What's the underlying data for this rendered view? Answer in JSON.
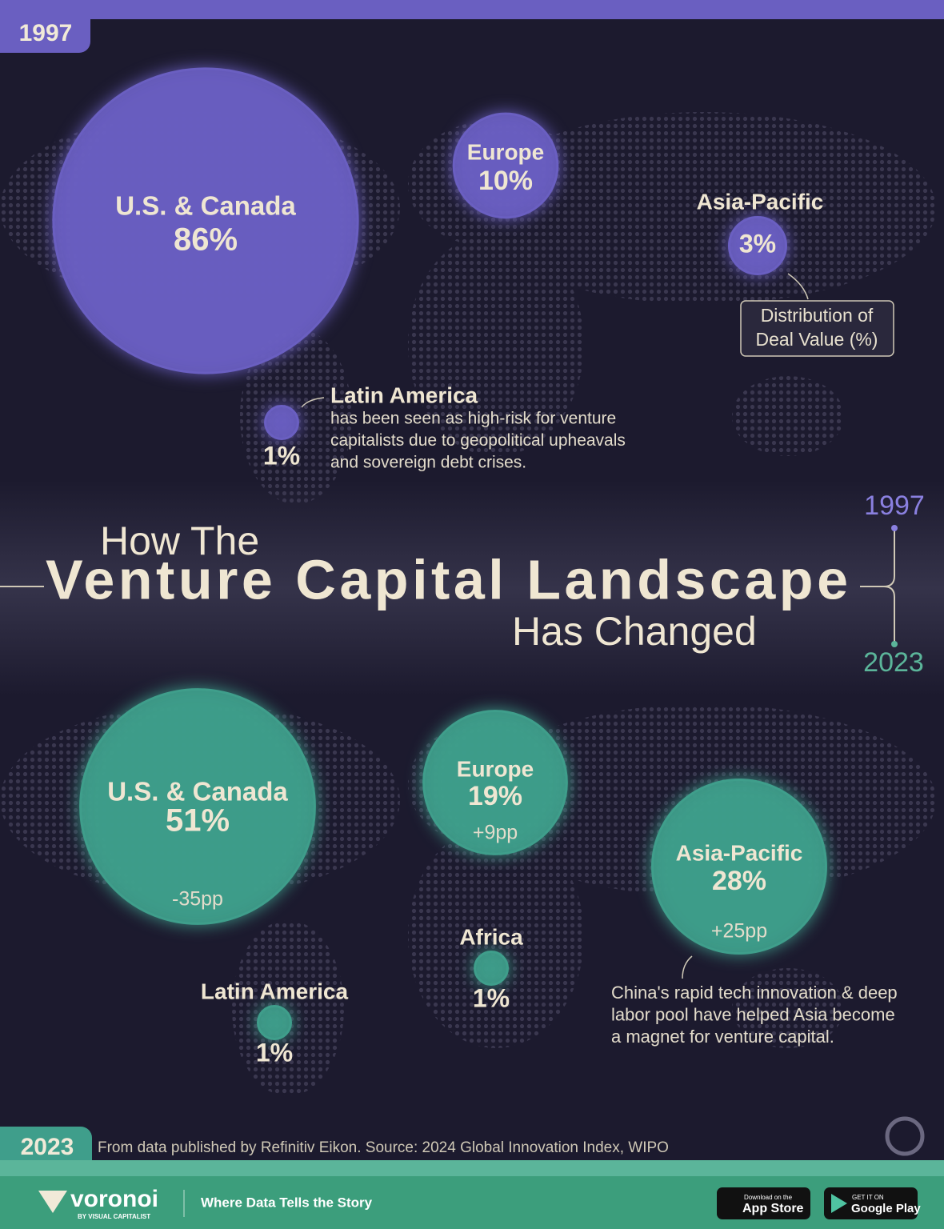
{
  "header": {
    "year": "1997"
  },
  "title": {
    "line1": "How The",
    "line2": "Venture Capital Landscape",
    "line3": "Has Changed"
  },
  "timeline": {
    "start": "1997",
    "end": "2023"
  },
  "legend_note": {
    "lines": [
      "Distribution of",
      "Deal Value (%)"
    ]
  },
  "panels": [
    {
      "year": "1997",
      "color": "#6a5fc1",
      "regions": [
        {
          "name": "U.S. & Canada",
          "value": 86,
          "value_label": "86%"
        },
        {
          "name": "Europe",
          "value": 10,
          "value_label": "10%"
        },
        {
          "name": "Asia-Pacific",
          "value": 3,
          "value_label": "3%"
        },
        {
          "name": "Latin America",
          "value": 1,
          "value_label": "1%"
        }
      ],
      "note": {
        "lines": [
          "has been seen as high-risk for venture",
          "capitalists due to geopolitical upheavals",
          "and sovereign debt crises."
        ]
      }
    },
    {
      "year": "2023",
      "color": "#3f9e8b",
      "regions": [
        {
          "name": "U.S. & Canada",
          "value": 51,
          "value_label": "51%",
          "change": -35,
          "change_label": "-35pp"
        },
        {
          "name": "Europe",
          "value": 19,
          "value_label": "19%",
          "change": 9,
          "change_label": "+9pp"
        },
        {
          "name": "Asia-Pacific",
          "value": 28,
          "value_label": "28%",
          "change": 25,
          "change_label": "+25pp"
        },
        {
          "name": "Africa",
          "value": 1,
          "value_label": "1%"
        },
        {
          "name": "Latin America",
          "value": 1,
          "value_label": "1%"
        }
      ],
      "note": {
        "lines": [
          "China's rapid tech innovation & deep",
          "labor pool have helped Asia become",
          "a magnet for venture capital."
        ]
      }
    }
  ],
  "footer": {
    "source": "From data published by Refinitiv Eikon. Source: 2024 Global Innovation Index, WIPO",
    "brand": "voronoi",
    "brand_sub": "BY VISUAL CAPITALIST",
    "tagline": "Where Data Tells the Story",
    "app_store_small": "Download on the",
    "app_store": "App Store",
    "google_small": "GET IT ON",
    "google": "Google Play"
  }
}
